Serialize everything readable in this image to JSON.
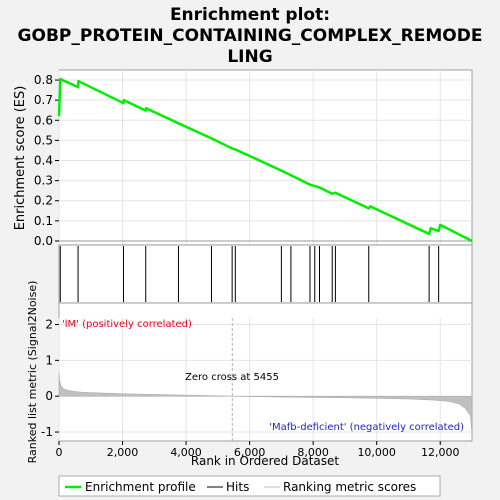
{
  "chart_data": [
    {
      "type": "line",
      "title": "Enrichment plot: GOBP_PROTEIN_CONTAINING_COMPLEX_REMODELING",
      "title_lines": [
        "Enrichment plot:",
        "GOBP_PROTEIN_CONTAINING_COMPLEX_REMODE",
        "LING"
      ],
      "ylabel": "Enrichment score (ES)",
      "ylim": [
        -0.02,
        0.85
      ],
      "yticks": [
        0.0,
        0.1,
        0.2,
        0.3,
        0.4,
        0.5,
        0.6,
        0.7,
        0.8
      ],
      "ytick_labels": [
        "0.0",
        "0.1",
        "0.2",
        "0.3",
        "0.4",
        "0.5",
        "0.6",
        "0.7",
        "0.8"
      ],
      "xlim": [
        0,
        13000
      ],
      "grid": true,
      "series": [
        {
          "name": "Enrichment profile",
          "color": "#00ee00",
          "x": [
            0,
            40,
            600,
            610,
            2030,
            2040,
            2730,
            2740,
            3760,
            4800,
            5450,
            5550,
            7000,
            7300,
            7900,
            8050,
            8200,
            8600,
            8700,
            9750,
            9800,
            11650,
            11700,
            11950,
            12000,
            13000
          ],
          "y": [
            0.62,
            0.805,
            0.765,
            0.795,
            0.685,
            0.7,
            0.648,
            0.66,
            0.585,
            0.51,
            0.46,
            0.455,
            0.35,
            0.327,
            0.28,
            0.273,
            0.266,
            0.235,
            0.24,
            0.162,
            0.172,
            0.035,
            0.063,
            0.05,
            0.08,
            0.0
          ]
        }
      ]
    },
    {
      "type": "scatter",
      "name": "hits",
      "xlim": [
        0,
        13000
      ],
      "hits": [
        40,
        600,
        2030,
        2730,
        3760,
        4800,
        5450,
        5550,
        7000,
        7300,
        7900,
        8050,
        8200,
        8600,
        8700,
        9750,
        11650,
        11950
      ],
      "hit_color": "#000000"
    },
    {
      "type": "heatmap",
      "name": "ranked list colour bar",
      "xlim": [
        0,
        13000
      ],
      "segments": [
        {
          "x0": 0,
          "x1": 2100,
          "color": "#ff5c6e"
        },
        {
          "x0": 2100,
          "x1": 2900,
          "color": "#ff7a86"
        },
        {
          "x0": 2900,
          "x1": 4050,
          "color": "#ff96a0"
        },
        {
          "x0": 4050,
          "x1": 6700,
          "color": "#ffc8e4"
        },
        {
          "x0": 6700,
          "x1": 8300,
          "color": "#e0e0ff"
        },
        {
          "x0": 8300,
          "x1": 9600,
          "color": "#d4d4fa"
        },
        {
          "x0": 9600,
          "x1": 10200,
          "color": "#c6c6f8"
        },
        {
          "x0": 10200,
          "x1": 10900,
          "color": "#9e9ef0"
        },
        {
          "x0": 10900,
          "x1": 12700,
          "color": "#5a5ad8"
        },
        {
          "x0": 12700,
          "x1": 13000,
          "color": "#1a0aa8"
        }
      ],
      "pos_label": "'lM' (positively correlated)",
      "neg_label": "'Mafb-deficient' (negatively correlated)",
      "pos_color": "#e8001c",
      "neg_color": "#1f24c8"
    },
    {
      "type": "area",
      "name": "Ranking metric scores",
      "xlabel": "Rank in Ordered Dataset",
      "ylabel": "Ranked list metric (Signal2Noise)",
      "xlim": [
        0,
        13000
      ],
      "ylim": [
        -1.25,
        2.6
      ],
      "yticks": [
        -1,
        0,
        1,
        2
      ],
      "ytick_labels": [
        "-1",
        "0",
        "1",
        "2"
      ],
      "xticks": [
        0,
        2000,
        4000,
        6000,
        8000,
        10000,
        12000
      ],
      "xtick_labels": [
        "0",
        "2,000",
        "4,000",
        "6,000",
        "8,000",
        "10,000",
        "12,000"
      ],
      "color": "#c0c0c0",
      "x": [
        0,
        20,
        60,
        150,
        300,
        600,
        1000,
        2000,
        3000,
        4000,
        5000,
        5455,
        6000,
        7000,
        8000,
        9000,
        10000,
        11000,
        11800,
        12300,
        12600,
        12800,
        12950,
        13000
      ],
      "y": [
        0.65,
        0.45,
        0.3,
        0.2,
        0.16,
        0.12,
        0.1,
        0.07,
        0.05,
        0.03,
        0.012,
        0.0,
        -0.01,
        -0.025,
        -0.035,
        -0.045,
        -0.06,
        -0.08,
        -0.11,
        -0.15,
        -0.22,
        -0.35,
        -0.55,
        -1.1
      ],
      "annotation": "Zero cross at 5455",
      "zero_cross": 5455
    }
  ],
  "legend": {
    "items": [
      {
        "label": "Enrichment profile",
        "color": "#00ee00",
        "kind": "thick-line"
      },
      {
        "label": "Hits",
        "color": "#000000",
        "kind": "line"
      },
      {
        "label": "Ranking metric scores",
        "color": "#c0c0c0",
        "kind": "line"
      }
    ]
  }
}
